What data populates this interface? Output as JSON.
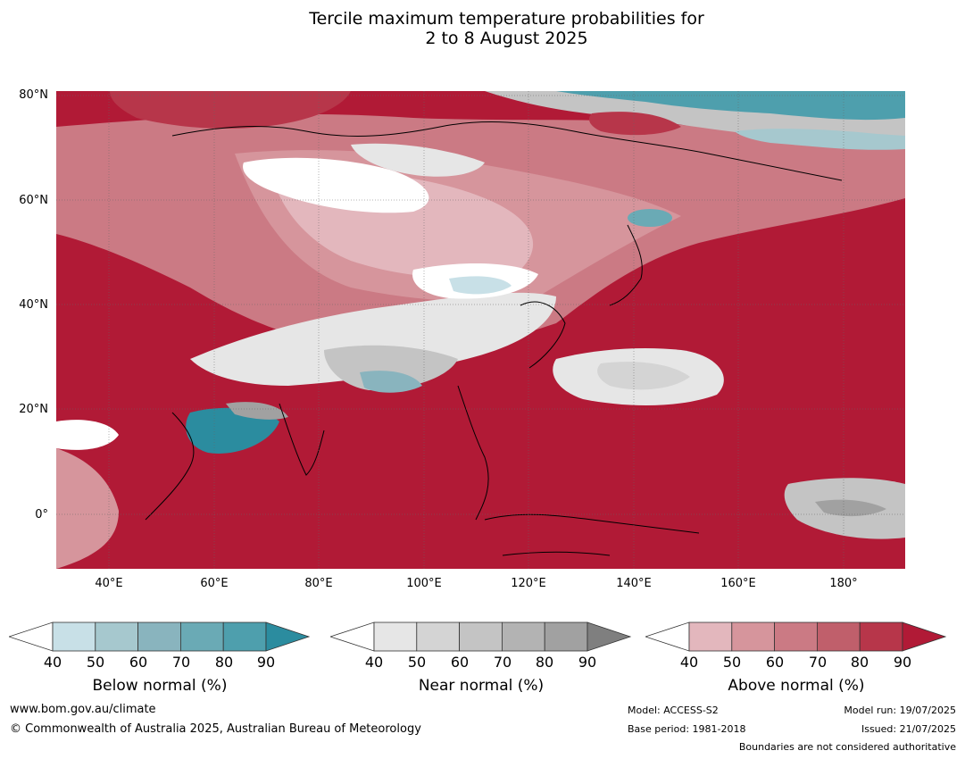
{
  "title_line1": "Tercile maximum temperature probabilities for",
  "title_line2": "2 to 8 August 2025",
  "lat_ticks": [
    "80°N",
    "60°N",
    "40°N",
    "20°N",
    "0°"
  ],
  "lon_ticks": [
    "40°E",
    "60°E",
    "80°E",
    "100°E",
    "120°E",
    "140°E",
    "160°E",
    "180°"
  ],
  "colorbars": [
    {
      "name": "Below normal (%)",
      "ticks": [
        "40",
        "50",
        "60",
        "70",
        "80",
        "90"
      ],
      "colors": [
        "#c8e0e7",
        "#a6c8ce",
        "#89b4be",
        "#6aaab5",
        "#4e9fad",
        "#2b8c9f"
      ]
    },
    {
      "name": "Near normal (%)",
      "ticks": [
        "40",
        "50",
        "60",
        "70",
        "80",
        "90"
      ],
      "colors": [
        "#e6e6e6",
        "#d4d4d4",
        "#c4c4c4",
        "#b3b3b3",
        "#a1a1a1",
        "#7f7f7f"
      ]
    },
    {
      "name": "Above normal (%)",
      "ticks": [
        "40",
        "50",
        "60",
        "70",
        "80",
        "90"
      ],
      "colors": [
        "#e3b7bd",
        "#d6959c",
        "#cb7a84",
        "#c05f6b",
        "#b7364a",
        "#b11a36"
      ]
    }
  ],
  "footer": {
    "website": "www.bom.gov.au/climate",
    "copyright": "© Commonwealth of Australia 2025, Australian Bureau of Meteorology",
    "model": "Model: ACCESS-S2",
    "base_period": "Base period: 1981-2018",
    "model_run": "Model run: 19/07/2025",
    "issued": "Issued: 21/07/2025",
    "boundaries": "Boundaries are not considered authoritative"
  }
}
